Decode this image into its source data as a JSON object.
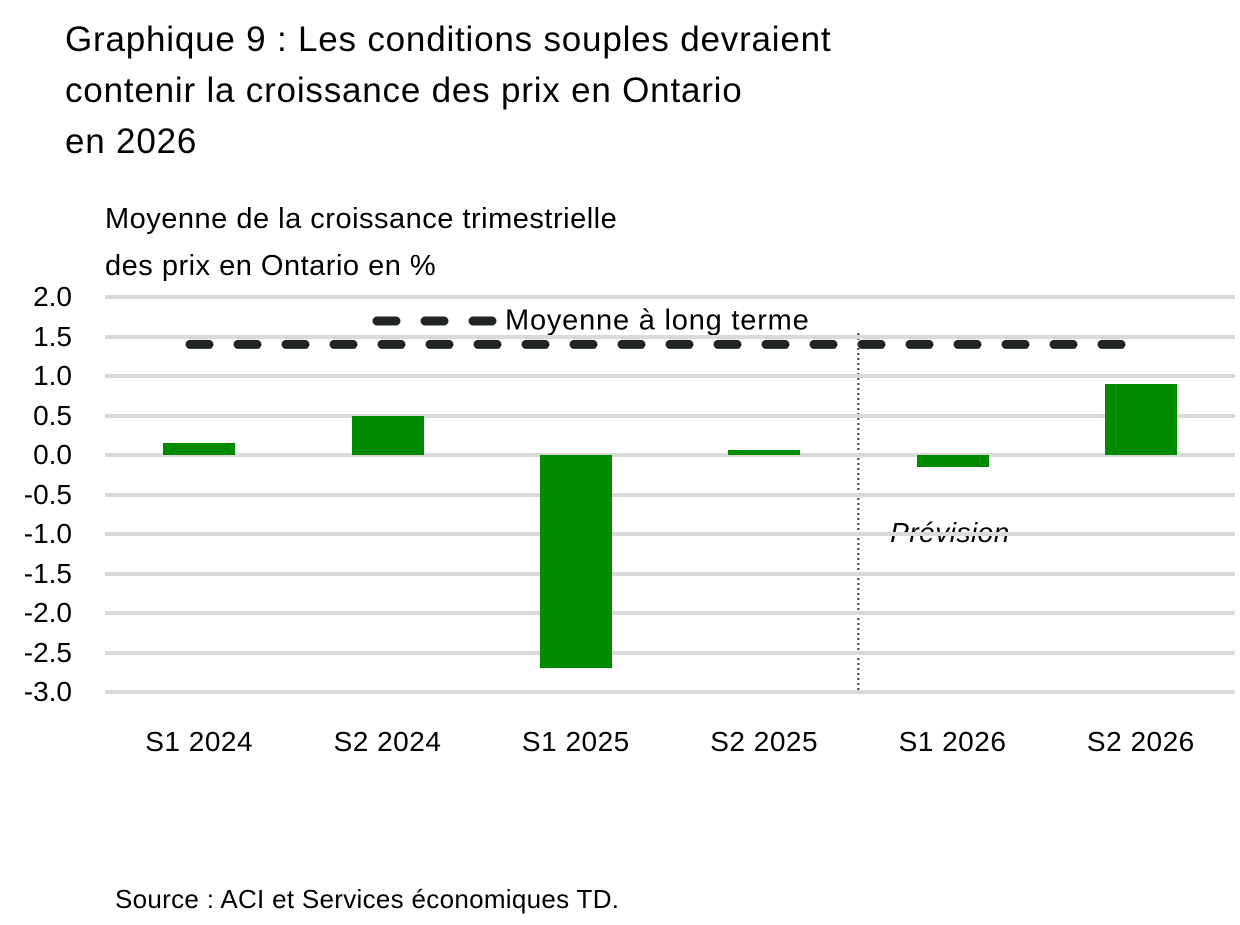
{
  "figure": {
    "title": "Graphique 9 : Les conditions souples devraient\ncontenir la croissance des prix en Ontario\nen 2026",
    "subtitle": "Moyenne de la croissance trimestrielle\ndes prix en Ontario en %",
    "source": "Source : ACI et Services économiques TD."
  },
  "chart_data": {
    "type": "bar",
    "title": "Graphique 9 : Les conditions souples devraient contenir la croissance des prix en Ontario en 2026",
    "ylabel": "Moyenne de la croissance trimestrielle des prix en Ontario en %",
    "xlabel": "",
    "categories": [
      "S1 2024",
      "S2 2024",
      "S1 2025",
      "S2 2025",
      "S1 2026",
      "S2 2026"
    ],
    "values": [
      0.15,
      0.5,
      -2.7,
      0.06,
      -0.15,
      0.9
    ],
    "ylim": [
      -3.0,
      2.0
    ],
    "yticks": [
      2.0,
      1.5,
      1.0,
      0.5,
      0.0,
      -0.5,
      -1.0,
      -1.5,
      -2.0,
      -2.5,
      -3.0
    ],
    "ytick_labels": [
      "2.0",
      "1.5",
      "1.0",
      "0.5",
      "0.0",
      "-0.5",
      "-1.0",
      "-1.5",
      "-2.0",
      "-2.5",
      "-3.0"
    ],
    "grid": true,
    "legend_position": "top-center-inside",
    "reference_line": {
      "label": "Moyenne à long terme",
      "value": 1.4,
      "style": "dashed"
    },
    "forecast": {
      "label": "Prévision",
      "divider_after_index": 3,
      "divider_style": "dotted"
    },
    "colors": {
      "bar": "#008A00",
      "reference_line": "#212426",
      "gridline": "#D9D9D9",
      "divider": "#3A3A3A",
      "text": "#000000"
    }
  }
}
